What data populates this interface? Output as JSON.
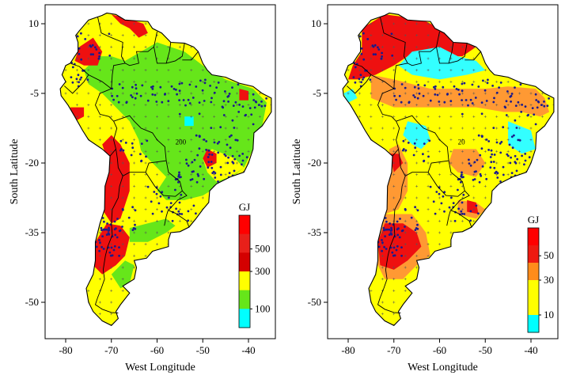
{
  "panels": [
    {
      "id": "left",
      "x_ticks": [
        "-80",
        "-70",
        "-60",
        "-50",
        "-40"
      ],
      "y_ticks": [
        "10",
        "-5",
        "-20",
        "-35",
        "-50"
      ],
      "x_label": "West Longitude",
      "y_label": "South Latitude",
      "legend_title": "GJ",
      "legend_labels": [
        "500",
        "300",
        "100"
      ],
      "legend_colors": [
        "#ff0000",
        "#e8201a",
        "#d40000",
        "#ffff00",
        "#66e61a",
        "#00ffff"
      ],
      "contour_label": "200",
      "region_colors": {
        "low": "#00ffff",
        "mid": "#66e61a",
        "base": "#ffff00",
        "high": "#ee1010"
      }
    },
    {
      "id": "right",
      "x_ticks": [
        "-80",
        "-70",
        "-60",
        "-50",
        "-40"
      ],
      "y_ticks": [
        "10",
        "-5",
        "-20",
        "-35",
        "-50"
      ],
      "x_label": "West Longitude",
      "y_label": "South Latitude",
      "legend_title": "GJ",
      "legend_labels": [
        "50",
        "30",
        "10"
      ],
      "legend_colors": [
        "#ff0000",
        "#ee1a10",
        "#ff8c1a",
        "#ffff00",
        "#ffff00",
        "#00ffff"
      ],
      "contour_label": "20",
      "region_colors": {
        "low": "#33ffff",
        "mid": "#ff9933",
        "base": "#ffff00",
        "high": "#ee1010"
      }
    }
  ]
}
